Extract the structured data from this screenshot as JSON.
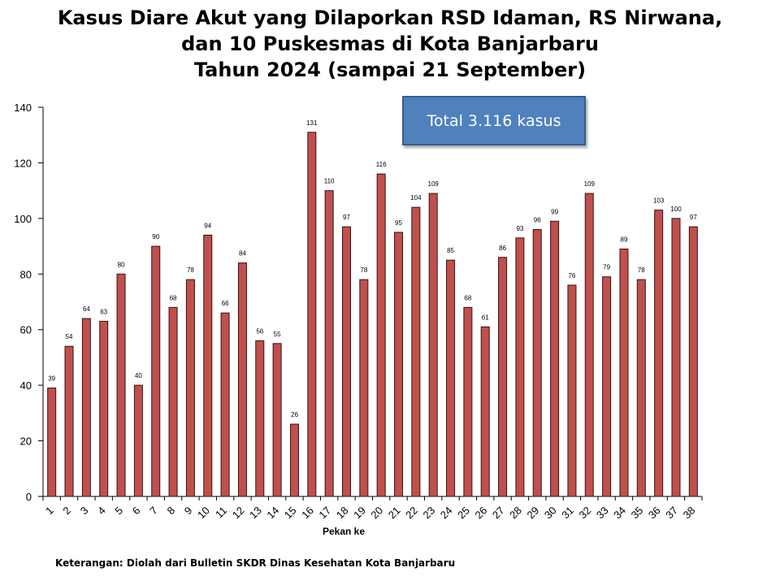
{
  "title_lines": [
    "Kasus Diare Akut yang Dilaporkan RSD Idaman, RS Nirwana,",
    "dan 10 Puskesmas di Kota Banjarbaru",
    "Tahun 2024 (sampai 21 September)"
  ],
  "total_box": "Total 3.116 kasus",
  "footnote": "Keterangan: Diolah dari Bulletin SKDR Dinas Kesehatan Kota Banjarbaru",
  "colors": {
    "bar_fill": "#c0504d",
    "bar_stroke": "#3a1010",
    "box_fill": "#4f81bd"
  },
  "chart_data": {
    "type": "bar",
    "title": "Kasus Diare Akut yang Dilaporkan RSD Idaman, RS Nirwana, dan 10 Puskesmas di Kota Banjarbaru Tahun 2024 (sampai 21 September)",
    "xlabel": "Pekan ke",
    "ylabel": "",
    "ylim": [
      0,
      140
    ],
    "yticks": [
      0,
      20,
      40,
      60,
      80,
      100,
      120,
      140
    ],
    "grid": false,
    "categories": [
      "1",
      "2",
      "3",
      "4",
      "5",
      "6",
      "7",
      "8",
      "9",
      "10",
      "11",
      "12",
      "13",
      "14",
      "15",
      "16",
      "17",
      "18",
      "19",
      "20",
      "21",
      "22",
      "23",
      "24",
      "25",
      "26",
      "27",
      "28",
      "29",
      "30",
      "31",
      "32",
      "33",
      "34",
      "35",
      "36",
      "37",
      "38"
    ],
    "values": [
      39,
      54,
      64,
      63,
      80,
      40,
      90,
      68,
      78,
      94,
      66,
      84,
      56,
      55,
      26,
      131,
      110,
      97,
      78,
      116,
      95,
      104,
      109,
      85,
      68,
      61,
      86,
      93,
      96,
      99,
      76,
      109,
      79,
      89,
      78,
      103,
      100,
      97
    ]
  }
}
